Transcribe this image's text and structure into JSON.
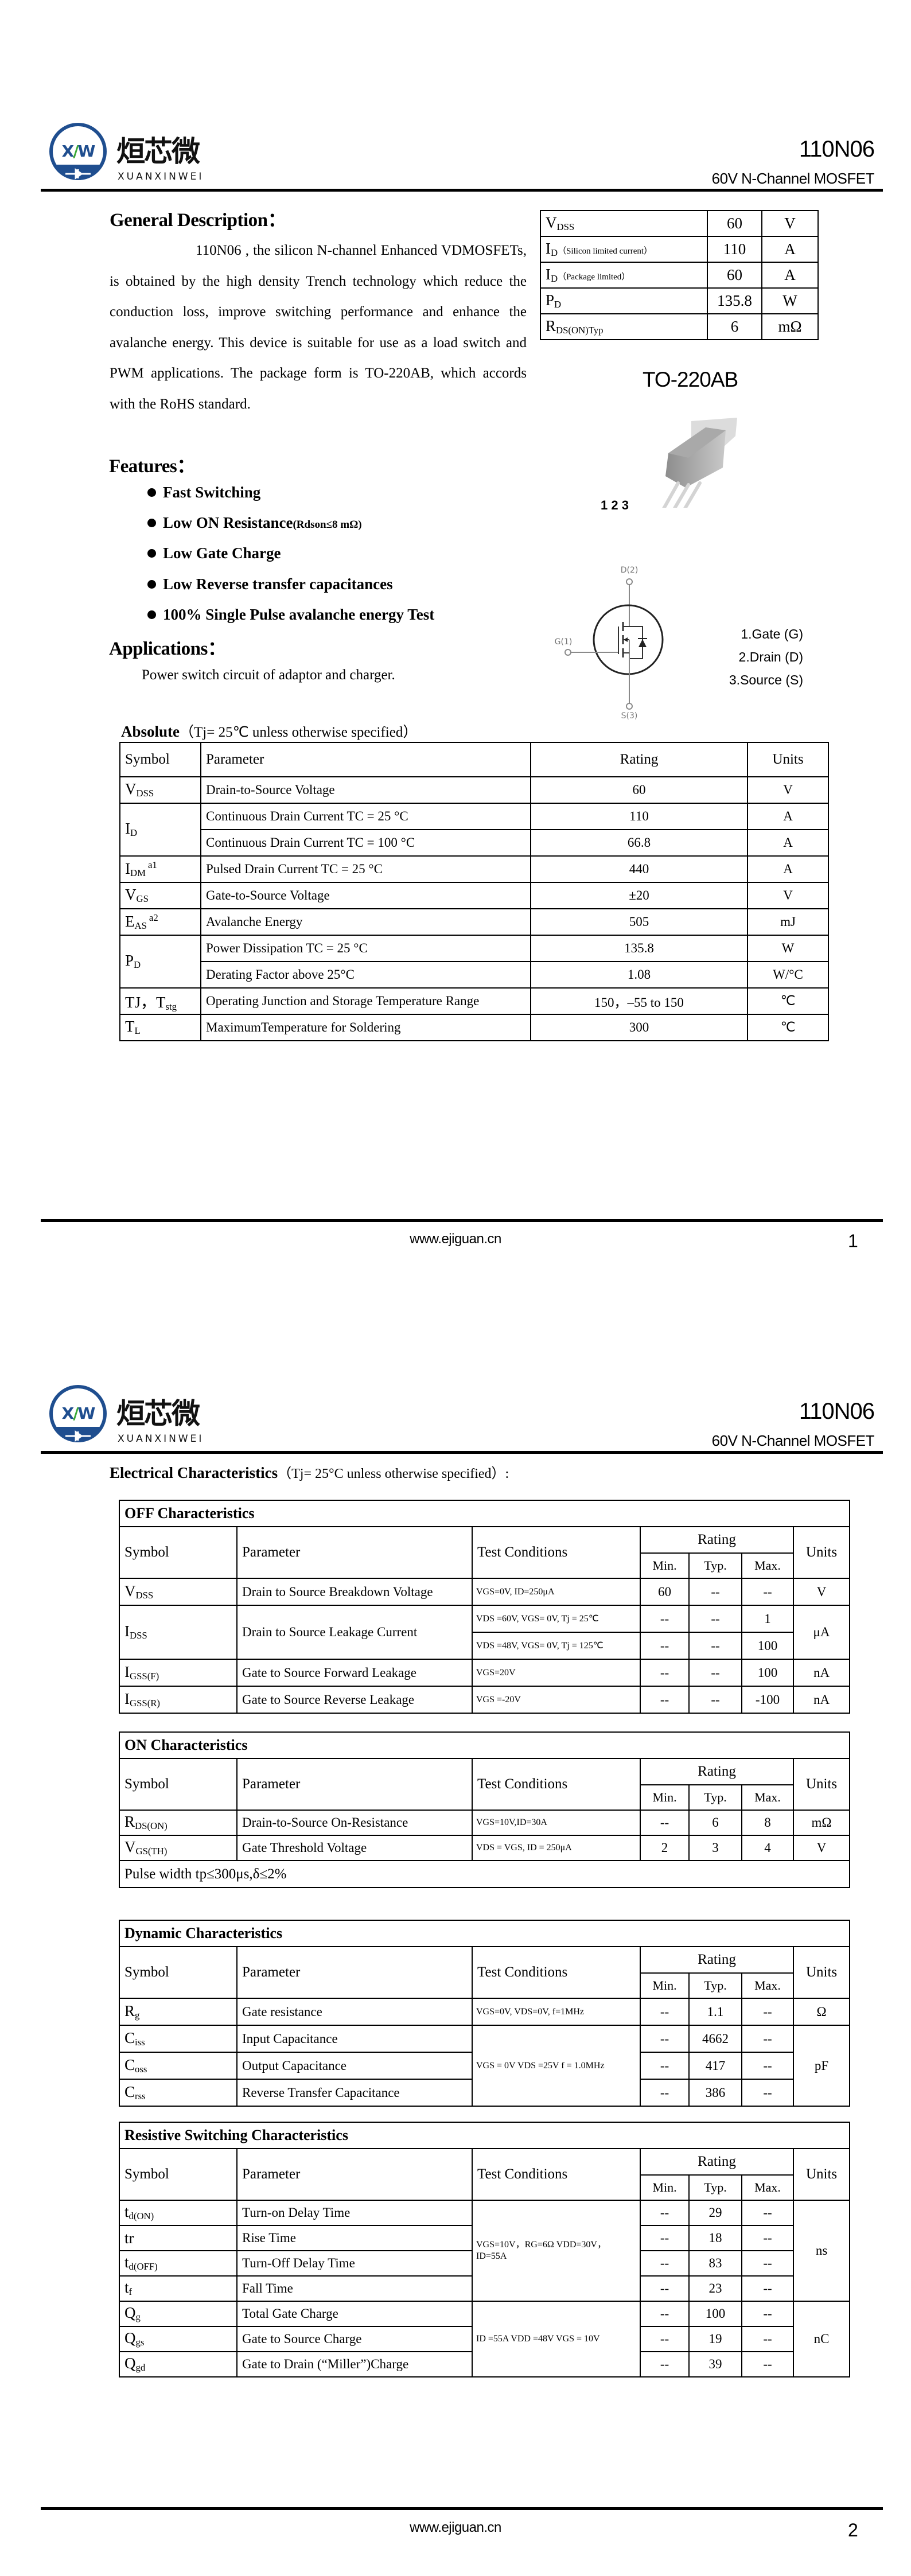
{
  "header": {
    "brand_cn": "烜芯微",
    "brand_en": "XUANXINWEI",
    "logo_mark": "XW",
    "part": "110N06",
    "subtitle": "60V N-Channel MOSFET",
    "colors": {
      "logo_blue": "#1f4e8f",
      "logo_green": "#3aa935"
    }
  },
  "footer": {
    "url": "www.ejiguan.cn",
    "pages": [
      "1",
      "2"
    ]
  },
  "page1": {
    "desc_title": "General Description：",
    "desc_text": "110N06 , the silicon N-channel Enhanced VDMOSFETs, is obtained by the high density Trench technology which reduce the conduction loss, improve switching performance and enhance the avalanche energy. This device is suitable for use as a load switch and PWM applications. The package form is TO-220AB, which accords with the RoHS standard.",
    "key_specs": [
      {
        "sym": "V",
        "sub": "DSS",
        "note": "",
        "value": "60",
        "unit": "V"
      },
      {
        "sym": "I",
        "sub": "D",
        "note": "（Silicon limited current）",
        "value": "110",
        "unit": "A"
      },
      {
        "sym": "I",
        "sub": "D",
        "note": "（Package limited）",
        "value": "60",
        "unit": "A"
      },
      {
        "sym": "P",
        "sub": "D",
        "note": "",
        "value": "135.8",
        "unit": "W"
      },
      {
        "sym": "R",
        "sub": "DS(ON)Typ",
        "note": "",
        "value": "6",
        "unit": "mΩ"
      }
    ],
    "package": "TO-220AB",
    "pin_numbers": "1 2 3",
    "features_title": "Features：",
    "features": [
      {
        "text": "Fast Switching",
        "note": ""
      },
      {
        "text": "Low ON Resistance",
        "note": "(Rdson≤8 mΩ)"
      },
      {
        "text": "Low Gate Charge",
        "note": ""
      },
      {
        "text": "Low Reverse transfer capacitances",
        "note": ""
      },
      {
        "text": "100% Single Pulse avalanche energy Test",
        "note": ""
      }
    ],
    "applications_title": "Applications：",
    "applications_text": "Power switch circuit of adaptor and charger.",
    "schematic": {
      "drain": "D(2)",
      "gate": "G(1)",
      "source": "S(3)"
    },
    "pins": [
      "1.Gate (G)",
      "2.Drain (D)",
      "3.Source (S)"
    ],
    "absolute": {
      "title": "Absolute",
      "condition": "（Tj= 25℃  unless otherwise specified）",
      "headers": [
        "Symbol",
        "Parameter",
        "Rating",
        "Units"
      ],
      "rows": [
        {
          "sym": "V",
          "sub": "DSS",
          "sup": "",
          "span": 1,
          "param": "Drain-to-Source Voltage",
          "rating": "60",
          "unit": "V"
        },
        {
          "sym": "I",
          "sub": "D",
          "sup": "",
          "span": 2,
          "param": "Continuous Drain Current TC = 25 °C",
          "rating": "110",
          "unit": "A"
        },
        {
          "param": "Continuous Drain Current TC = 100 °C",
          "rating": "66.8",
          "unit": "A"
        },
        {
          "sym": "I",
          "sub": "DM",
          "sup": "a1",
          "span": 1,
          "param": "Pulsed Drain Current TC = 25 °C",
          "rating": "440",
          "unit": "A"
        },
        {
          "sym": "V",
          "sub": "GS",
          "sup": "",
          "span": 1,
          "param": "Gate-to-Source Voltage",
          "rating": "±20",
          "unit": "V"
        },
        {
          "sym": "E",
          "sub": "AS",
          "sup": "a2",
          "span": 1,
          "param": "Avalanche Energy",
          "rating": "505",
          "unit": "mJ"
        },
        {
          "sym": "P",
          "sub": "D",
          "sup": "",
          "span": 2,
          "param": "Power Dissipation TC = 25 °C",
          "rating": "135.8",
          "unit": "W"
        },
        {
          "param": "Derating Factor above 25°C",
          "rating": "1.08",
          "unit": "W/°C"
        },
        {
          "sym": "TJ，T",
          "sub": "stg",
          "sup": "",
          "span": 1,
          "param": "Operating Junction and Storage Temperature Range",
          "rating": "150，–55 to 150",
          "unit": "℃"
        },
        {
          "sym": "T",
          "sub": "L",
          "sup": "",
          "span": 1,
          "param": "MaximumTemperature for Soldering",
          "rating": "300",
          "unit": "℃"
        }
      ]
    }
  },
  "page2": {
    "title": "Electrical Characteristics",
    "condition": "（Tj= 25°C unless otherwise specified）:",
    "headers": {
      "symbol": "Symbol",
      "parameter": "Parameter",
      "conditions": "Test Conditions",
      "rating": "Rating",
      "min": "Min.",
      "typ": "Typ.",
      "max": "Max.",
      "units": "Units"
    },
    "sections": [
      {
        "title": "OFF Characteristics",
        "rows": [
          {
            "sym": "V",
            "sub": "DSS",
            "param": "Drain to Source Breakdown Voltage",
            "cond": "VGS=0V, ID=250μA",
            "min": "60",
            "typ": "--",
            "max": "--",
            "unit": "V"
          },
          {
            "sym": "I",
            "sub": "DSS",
            "sym_span": 2,
            "param": "Drain to Source Leakage Current",
            "param_span": 2,
            "cond": "VDS =60V, VGS= 0V, Tj = 25℃",
            "min": "--",
            "typ": "--",
            "max": "1",
            "unit": "μA",
            "unit_span": 2
          },
          {
            "cond": "VDS =48V, VGS= 0V, Tj = 125℃",
            "min": "--",
            "typ": "--",
            "max": "100"
          },
          {
            "sym": "I",
            "sub": "GSS(F)",
            "param": "Gate to Source Forward Leakage",
            "cond": "VGS=20V",
            "min": "--",
            "typ": "--",
            "max": "100",
            "unit": "nA"
          },
          {
            "sym": "I",
            "sub": "GSS(R)",
            "param": "Gate to Source Reverse Leakage",
            "cond": "VGS =-20V",
            "min": "--",
            "typ": "--",
            "max": "-100",
            "unit": "nA"
          }
        ]
      },
      {
        "title": "ON Characteristics",
        "rows": [
          {
            "sym": "R",
            "sub": "DS(ON)",
            "param": "Drain-to-Source On-Resistance",
            "cond": "VGS=10V,ID=30A",
            "min": "--",
            "typ": "6",
            "max": "8",
            "unit": "mΩ"
          },
          {
            "sym": "V",
            "sub": "GS(TH)",
            "param": "Gate Threshold Voltage",
            "cond": "VDS = VGS, ID = 250μA",
            "min": "2",
            "typ": "3",
            "max": "4",
            "unit": "V"
          }
        ],
        "note": "Pulse width tp≤300μs,δ≤2%"
      },
      {
        "title": "Dynamic Characteristics",
        "rows": [
          {
            "sym": "R",
            "sub": "g",
            "param": "Gate resistance",
            "cond": "VGS=0V, VDS=0V, f=1MHz",
            "min": "--",
            "typ": "1.1",
            "max": "--",
            "unit": "Ω"
          },
          {
            "sym": "C",
            "sub": "iss",
            "param": "Input Capacitance",
            "cond": "VGS = 0V VDS =25V f = 1.0MHz",
            "cond_span": 3,
            "min": "--",
            "typ": "4662",
            "max": "--",
            "unit": "pF",
            "unit_span": 3
          },
          {
            "sym": "C",
            "sub": "oss",
            "param": "Output Capacitance",
            "min": "--",
            "typ": "417",
            "max": "--"
          },
          {
            "sym": "C",
            "sub": "rss",
            "param": "Reverse Transfer Capacitance",
            "min": "--",
            "typ": "386",
            "max": "--"
          }
        ]
      },
      {
        "title": "Resistive Switching Characteristics",
        "rows": [
          {
            "sym": "t",
            "sub": "d(ON)",
            "param": "Turn-on Delay Time",
            "cond": "VGS=10V，RG=6Ω VDD=30V，ID=55A",
            "cond_span": 4,
            "min": "--",
            "typ": "29",
            "max": "--",
            "unit": "ns",
            "unit_span": 4
          },
          {
            "sym": "tr",
            "sub": "",
            "param": "Rise Time",
            "min": "--",
            "typ": "18",
            "max": "--"
          },
          {
            "sym": "t",
            "sub": "d(OFF)",
            "param": "Turn-Off Delay Time",
            "min": "--",
            "typ": "83",
            "max": "--"
          },
          {
            "sym": "t",
            "sub": "f",
            "param": "Fall Time",
            "min": "--",
            "typ": "23",
            "max": "--"
          },
          {
            "sym": "Q",
            "sub": "g",
            "param": "Total Gate Charge",
            "cond": "ID =55A   VDD =48V VGS = 10V",
            "cond_span": 3,
            "min": "--",
            "typ": "100",
            "max": "--",
            "unit": "nC",
            "unit_span": 3
          },
          {
            "sym": "Q",
            "sub": "gs",
            "param": "Gate to Source Charge",
            "min": "--",
            "typ": "19",
            "max": "--"
          },
          {
            "sym": "Q",
            "sub": "gd",
            "param": "Gate to Drain (“Miller”)Charge",
            "min": "--",
            "typ": "39",
            "max": "--"
          }
        ]
      }
    ]
  }
}
